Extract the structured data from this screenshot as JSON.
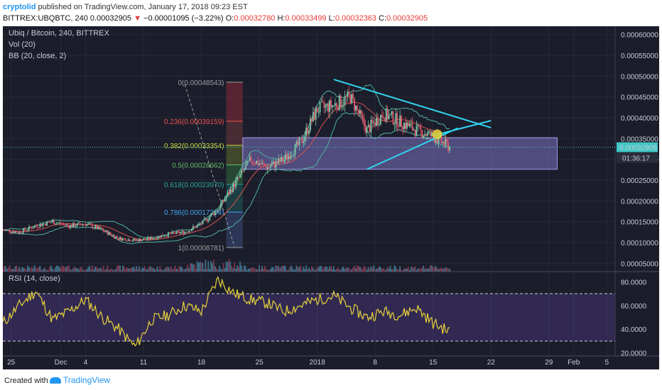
{
  "header": {
    "author": "cryptolid",
    "published_text": "published on TradingView.com, January 17, 2018 09:23 EST"
  },
  "ohlc": {
    "symbol": "BITTREX:UBQBTC, 240",
    "last": "0.00032905",
    "arrow": "▼",
    "change": "−0.00001095 (−3.22%)",
    "o_label": "O:",
    "o_value": "0.00032780",
    "h_label": "H:",
    "h_value": "0.00033499",
    "l_label": "L:",
    "l_value": "0.00032363",
    "c_label": "C:",
    "c_value": "0.00032905"
  },
  "legend": {
    "title": "Ubiq / Bitcoin, 240, BITTREX",
    "vol": "Vol (20)",
    "bb": "BB (20, close, 2)",
    "rsi": "RSI (14, close)"
  },
  "price_axis": {
    "ticks": [
      "0.00060000",
      "0.00055000",
      "0.00050000",
      "0.00045000",
      "0.00040000",
      "0.00035000",
      "0.00030000",
      "0.00025000",
      "0.00020000",
      "0.00015000",
      "0.00010000",
      "0.00005000"
    ],
    "last_price_label": "0.00032905",
    "countdown": "01:36:17"
  },
  "rsi_axis": {
    "ticks": [
      "80.0000",
      "60.0000",
      "40.0000",
      "20.0000"
    ]
  },
  "time_axis": {
    "ticks": [
      "25",
      "Dec",
      "4",
      "11",
      "18",
      "25",
      "2018",
      "8",
      "15",
      "22",
      "29",
      "Feb",
      "5"
    ]
  },
  "fibonacci": {
    "levels": [
      {
        "ratio": "0",
        "price": "0.00048543",
        "label": "0(0.00048543)",
        "color": "#9e9e9e"
      },
      {
        "ratio": "0.236",
        "price": "0.00039159",
        "label": "0.236(0.00039159)",
        "color": "#ef5350"
      },
      {
        "ratio": "0.382",
        "price": "0.00033354",
        "label": "0.382(0.00033354)",
        "color": "#cddc39"
      },
      {
        "ratio": "0.5",
        "price": "0.00028662",
        "label": "0.5(0.00028662)",
        "color": "#66bb6a"
      },
      {
        "ratio": "0.618",
        "price": "0.00023970",
        "label": "0.618(0.00023970)",
        "color": "#26a69a"
      },
      {
        "ratio": "0.786",
        "price": "0.00017294",
        "label": "0.786(0.00017294)",
        "color": "#42a5f5"
      },
      {
        "ratio": "1",
        "price": "0.00008781",
        "label": "1(0.00008781)",
        "color": "#9e9e9e"
      }
    ]
  },
  "chart_data": {
    "type": "line",
    "title": "Ubiq / Bitcoin, 240, BITTREX",
    "ylim": [
      3e-05,
      0.00062
    ],
    "rsi_ylim": [
      18,
      88
    ],
    "x_range": [
      "2017-11-24",
      "2018-02-06"
    ],
    "series": [
      {
        "name": "UBQBTC close",
        "x": [
          "2017-11-24",
          "2017-11-26",
          "2017-11-28",
          "2017-11-30",
          "2017-12-02",
          "2017-12-04",
          "2017-12-06",
          "2017-12-08",
          "2017-12-10",
          "2017-12-12",
          "2017-12-14",
          "2017-12-16",
          "2017-12-18",
          "2017-12-20",
          "2017-12-22",
          "2017-12-24",
          "2017-12-26",
          "2017-12-28",
          "2017-12-30",
          "2018-01-01",
          "2018-01-03",
          "2018-01-05",
          "2018-01-07",
          "2018-01-09",
          "2018-01-11",
          "2018-01-13",
          "2018-01-15",
          "2018-01-17"
        ],
        "values": [
          0.00013,
          0.000125,
          0.00014,
          0.00015,
          0.00014,
          0.000145,
          0.00013,
          0.00011,
          0.000105,
          0.00011,
          0.00012,
          0.000125,
          0.000145,
          0.00018,
          0.00024,
          0.0003,
          0.00028,
          0.0003,
          0.00034,
          0.00042,
          0.00043,
          0.00045,
          0.00037,
          0.00041,
          0.00039,
          0.00037,
          0.000355,
          0.000329
        ]
      },
      {
        "name": "RSI (14, close)",
        "x": [
          "2017-11-24",
          "2017-11-26",
          "2017-11-28",
          "2017-11-30",
          "2017-12-02",
          "2017-12-04",
          "2017-12-06",
          "2017-12-08",
          "2017-12-10",
          "2017-12-12",
          "2017-12-14",
          "2017-12-16",
          "2017-12-18",
          "2017-12-20",
          "2017-12-22",
          "2017-12-24",
          "2017-12-26",
          "2017-12-28",
          "2017-12-30",
          "2018-01-01",
          "2018-01-03",
          "2018-01-05",
          "2018-01-07",
          "2018-01-09",
          "2018-01-11",
          "2018-01-13",
          "2018-01-15",
          "2018-01-17"
        ],
        "values": [
          45,
          60,
          72,
          48,
          55,
          65,
          50,
          40,
          25,
          48,
          52,
          60,
          55,
          82,
          70,
          65,
          62,
          55,
          60,
          65,
          68,
          58,
          50,
          55,
          52,
          58,
          45,
          38
        ]
      }
    ],
    "grid": true
  }
}
